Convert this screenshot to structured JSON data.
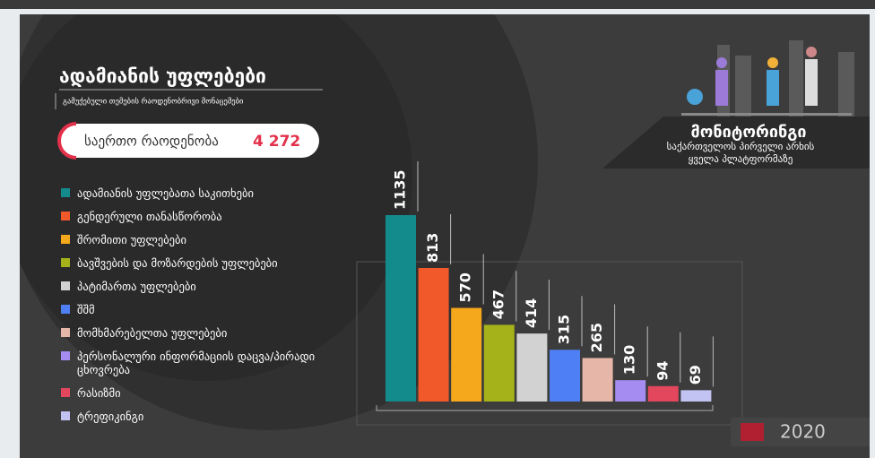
{
  "chart_data": {
    "type": "bar",
    "title": "ადამიანის უფლებები",
    "subtitle": "გამუქებული თემების რაოდენობრივი მონაცემები",
    "total_label": "საერთო რაოდენობა",
    "total": "4 272",
    "brand": "მონიტორინგი",
    "brand_lines": [
      "საქართველოს პირველი არხის",
      "ყველა პლატფორმაზე"
    ],
    "year": "2020",
    "categories": [
      "ადამიანის უფლებათა საკითხები",
      "გენდერული თანასწორობა",
      "შრომითი უფლებები",
      "ბავშვების და მოზარდების უფლებები",
      "პატიმართა უფლებები",
      "შშმ",
      "მომხმარებელთა უფლებები",
      "პერსონალური ინფორმაციის დაცვა/პირადი ცხოვრება",
      "რასიზმი",
      "ტრეფიკინგი"
    ],
    "values": [
      1135,
      813,
      570,
      467,
      414,
      315,
      265,
      130,
      94,
      69
    ],
    "colors": [
      "#138a8c",
      "#f1582a",
      "#f6a81c",
      "#a5b21a",
      "#d2d2d2",
      "#4f7ff5",
      "#e6b6a8",
      "#a58cf0",
      "#e2475d",
      "#c3c3f3"
    ]
  }
}
